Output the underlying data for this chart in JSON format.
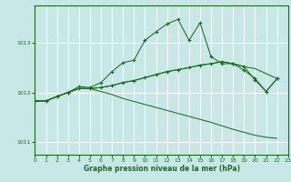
{
  "xlabel": "Graphe pression niveau de la mer (hPa)",
  "bg_color": "#c8e8e8",
  "grid_color": "#ffffff",
  "line_color": "#1a6e1a",
  "xlim": [
    0,
    23
  ],
  "ylim": [
    1010.75,
    1013.75
  ],
  "yticks": [
    1011,
    1012,
    1013
  ],
  "xticks": [
    0,
    1,
    2,
    3,
    4,
    5,
    6,
    7,
    8,
    9,
    10,
    11,
    12,
    13,
    14,
    15,
    16,
    17,
    18,
    19,
    20,
    21,
    22,
    23
  ],
  "s1_x": [
    0,
    1,
    2,
    3,
    4,
    5,
    6,
    7,
    8,
    9,
    10,
    11,
    12,
    13,
    14,
    15,
    16,
    17,
    18,
    19,
    20,
    21,
    22
  ],
  "s1_y": [
    1011.83,
    1011.83,
    1011.92,
    1012.0,
    1012.12,
    1012.1,
    1012.2,
    1012.42,
    1012.6,
    1012.65,
    1013.05,
    1013.22,
    1013.38,
    1013.47,
    1013.05,
    1013.4,
    1012.72,
    1012.58,
    1012.58,
    1012.45,
    1012.28,
    1012.02,
    1012.28
  ],
  "s2_x": [
    0,
    1,
    2,
    3,
    4,
    5,
    6,
    7,
    8,
    9,
    10,
    11,
    12,
    13,
    14,
    15,
    16,
    17,
    18,
    19,
    20,
    21,
    22
  ],
  "s2_y": [
    1011.83,
    1011.83,
    1011.92,
    1012.0,
    1012.08,
    1012.08,
    1012.1,
    1012.14,
    1012.2,
    1012.24,
    1012.3,
    1012.36,
    1012.42,
    1012.46,
    1012.5,
    1012.55,
    1012.58,
    1012.62,
    1012.58,
    1012.52,
    1012.25,
    1012.02,
    1012.28
  ],
  "s3_x": [
    0,
    1,
    2,
    3,
    4,
    5,
    6,
    7,
    8,
    9,
    10,
    11,
    12,
    13,
    14,
    15,
    16,
    17,
    18,
    19,
    20,
    21,
    22
  ],
  "s3_y": [
    1011.83,
    1011.83,
    1011.92,
    1012.0,
    1012.08,
    1012.08,
    1012.1,
    1012.14,
    1012.2,
    1012.24,
    1012.3,
    1012.36,
    1012.42,
    1012.46,
    1012.5,
    1012.55,
    1012.58,
    1012.62,
    1012.58,
    1012.52,
    1012.48,
    1012.38,
    1012.28
  ],
  "s4_x": [
    0,
    1,
    2,
    3,
    4,
    5,
    6,
    7,
    8,
    9,
    10,
    11,
    12,
    13,
    14,
    15,
    16,
    17,
    18,
    19,
    20,
    21,
    22
  ],
  "s4_y": [
    1011.83,
    1011.83,
    1011.92,
    1012.0,
    1012.08,
    1012.08,
    1012.02,
    1011.96,
    1011.88,
    1011.82,
    1011.76,
    1011.7,
    1011.64,
    1011.58,
    1011.52,
    1011.46,
    1011.4,
    1011.33,
    1011.26,
    1011.2,
    1011.14,
    1011.1,
    1011.08
  ]
}
